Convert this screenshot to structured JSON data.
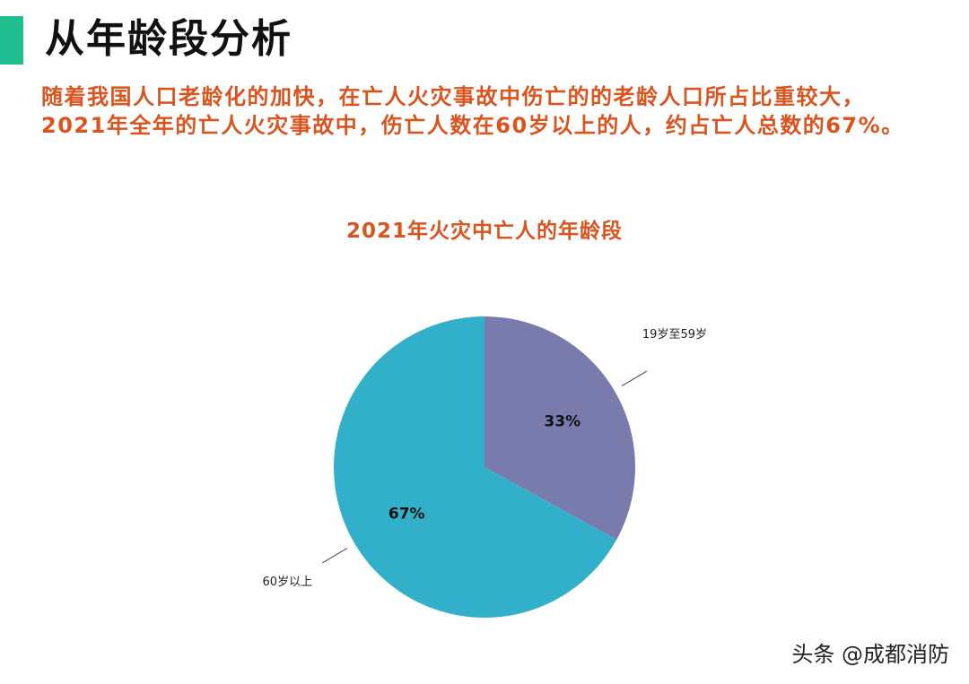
{
  "header": {
    "title": "从年龄段分析",
    "accent_color": "#1fbf8f"
  },
  "intro": {
    "text": "随着我国人口老龄化的加快，在亡人火灾事故中伤亡的的老龄人口所占比重较大，2021年全年的亡人火灾事故中，伤亡人数在60岁以上的人，约占亡人总数的67%。"
  },
  "chart_data": {
    "type": "pie",
    "title": "2021年火灾中亡人的年龄段",
    "slices": [
      {
        "label": "19岁至59岁",
        "value": 33,
        "data_label": "33%",
        "color": "#7a7bad"
      },
      {
        "label": "60岁以上",
        "value": 67,
        "data_label": "67%",
        "color": "#33b0c9"
      }
    ],
    "start_angle_deg": 0,
    "direction": "clockwise",
    "legend": "none"
  },
  "watermark": {
    "text": "头条 @成都消防"
  }
}
